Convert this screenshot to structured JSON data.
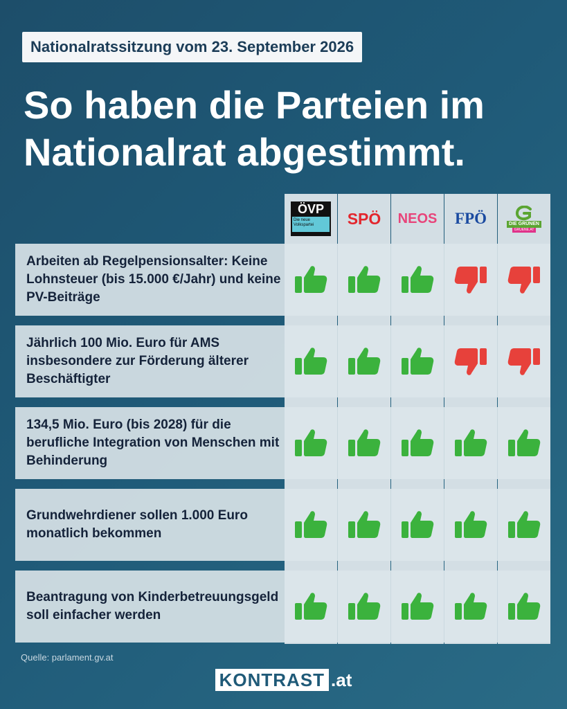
{
  "header": {
    "badge": "Nationalratssitzung vom 23. September 2026",
    "title": "So haben die Parteien im Nationalrat abgestimmt."
  },
  "parties": [
    {
      "name": "ÖVP",
      "sub": "Die neue Volkspartei",
      "color": "#111111"
    },
    {
      "name": "SPÖ",
      "color": "#e3262d"
    },
    {
      "name": "NEOS",
      "color": "#e8447a"
    },
    {
      "name": "FPÖ",
      "color": "#1a4aa0"
    },
    {
      "name": "DIE GRÜNEN",
      "sub": "GRUENE.AT",
      "color": "#5ba532"
    }
  ],
  "colors": {
    "yes": "#3bb23d",
    "no": "#e7413b"
  },
  "votes": [
    {
      "label": "Arbeiten ab Regelpensionsalter: Keine Lohnsteuer (bis 15.000 €/Jahr) und keine PV-Beiträge",
      "results": [
        "yes",
        "yes",
        "yes",
        "no",
        "no"
      ]
    },
    {
      "label": "Jährlich 100 Mio. Euro für AMS insbesondere zur Förderung älterer Beschäftigter",
      "results": [
        "yes",
        "yes",
        "yes",
        "no",
        "no"
      ]
    },
    {
      "label": "134,5 Mio. Euro (bis 2028) für die berufliche Integration von Menschen mit Behinderung",
      "results": [
        "yes",
        "yes",
        "yes",
        "yes",
        "yes"
      ]
    },
    {
      "label": "Grundwehrdiener sollen 1.000 Euro monatlich bekommen",
      "results": [
        "yes",
        "yes",
        "yes",
        "yes",
        "yes"
      ]
    },
    {
      "label": "Beantragung von Kinderbetreuungsgeld soll einfacher werden",
      "results": [
        "yes",
        "yes",
        "yes",
        "yes",
        "yes"
      ]
    }
  ],
  "footer": {
    "source": "Quelle: parlament.gv.at",
    "brand": "KONTRAST",
    "brand_tld": ".at"
  }
}
